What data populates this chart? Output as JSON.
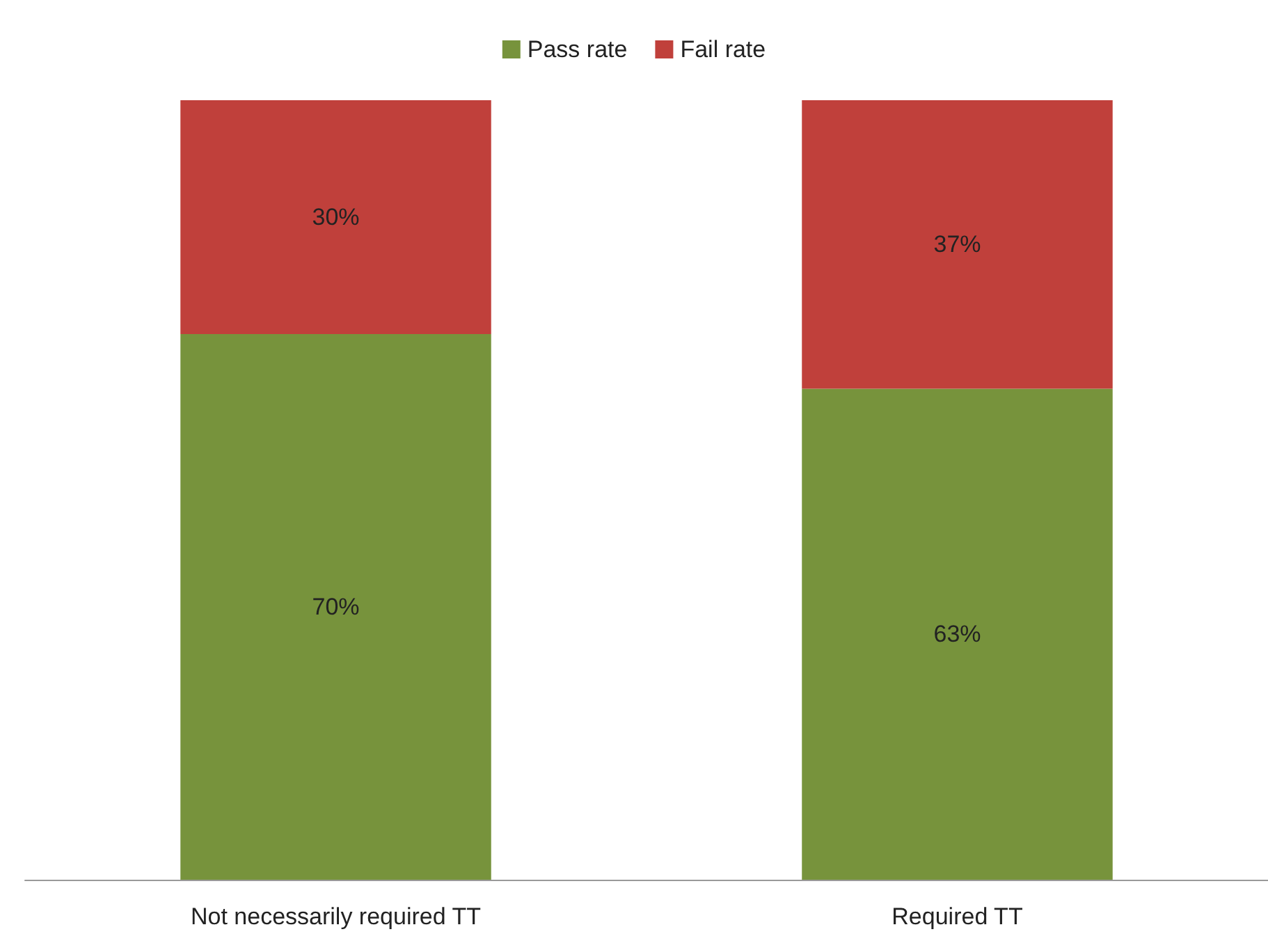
{
  "chart_data": {
    "type": "bar",
    "stacked": true,
    "categories": [
      "Not necessarily required TT",
      "Required TT"
    ],
    "series": [
      {
        "name": "Pass rate",
        "color": "#77933c",
        "values": [
          70,
          63
        ],
        "value_labels": [
          "70%",
          "63%"
        ]
      },
      {
        "name": "Fail rate",
        "color": "#c0403b",
        "values": [
          30,
          37
        ],
        "value_labels": [
          "30%",
          "37%"
        ]
      }
    ],
    "ylim": [
      0,
      100
    ],
    "tick_labels": "x",
    "grid": false,
    "legend": "top"
  }
}
